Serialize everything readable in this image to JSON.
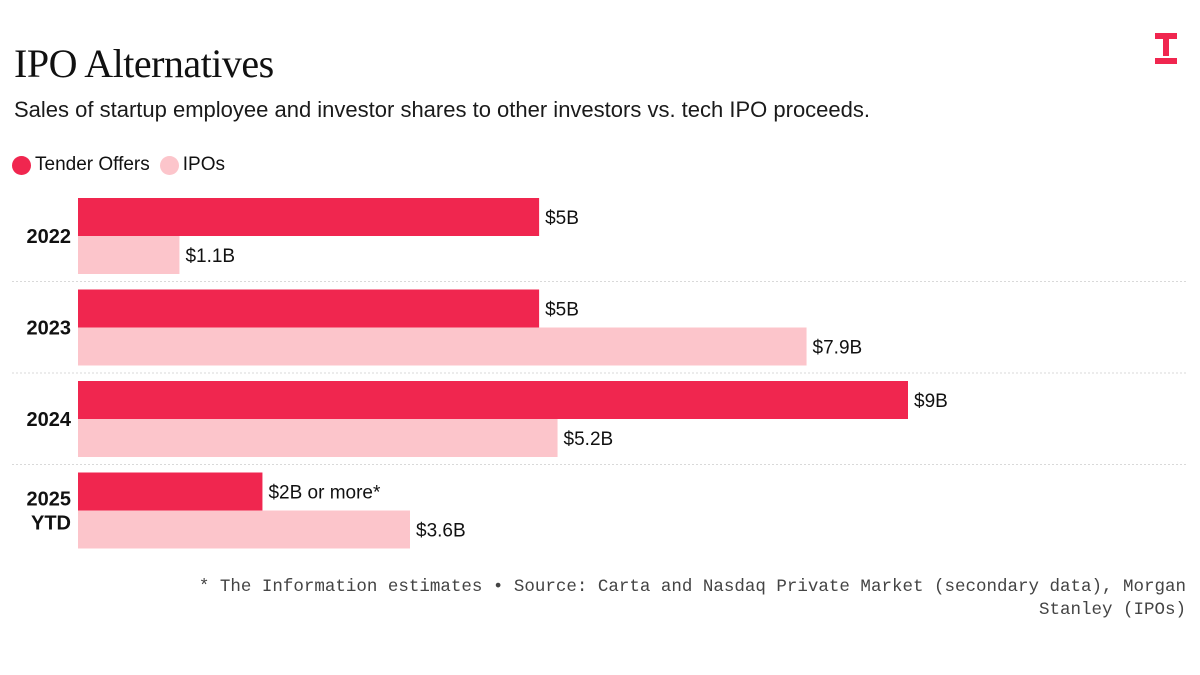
{
  "header": {
    "title": "IPO Alternatives",
    "subtitle": "Sales of startup employee and investor shares to other investors vs. tech IPO proceeds."
  },
  "legend": {
    "items": [
      {
        "label": "Tender Offers",
        "color": "#f0264f"
      },
      {
        "label": "IPOs",
        "color": "#fcc5cb"
      }
    ]
  },
  "colors": {
    "tender": "#f0264f",
    "ipo": "#fcc5cb",
    "grid": "#d9d9d9",
    "brand": "#f0264f"
  },
  "logo": {
    "icon": "the-information-logo-icon"
  },
  "chart_data": {
    "type": "bar",
    "orientation": "horizontal",
    "title": "IPO Alternatives",
    "subtitle": "Sales of startup employee and investor shares to other investors vs. tech IPO proceeds.",
    "categories": [
      [
        "2022"
      ],
      [
        "2023"
      ],
      [
        "2024"
      ],
      [
        "2025",
        "YTD"
      ]
    ],
    "series": [
      {
        "name": "Tender Offers",
        "values": [
          5,
          5,
          9,
          2
        ],
        "labels": [
          "$5B",
          "$5B",
          "$9B",
          "$2B or more*"
        ]
      },
      {
        "name": "IPOs",
        "values": [
          1.1,
          7.9,
          5.2,
          3.6
        ],
        "labels": [
          "$1.1B",
          "$7.9B",
          "$5.2B",
          "$3.6B"
        ]
      }
    ],
    "unit": "$B",
    "xlim": [
      0,
      9
    ],
    "xlabel": "",
    "ylabel": "",
    "grid": false,
    "legend_position": "top-left"
  },
  "footnote": {
    "line1": "* The Information estimates • Source: Carta and Nasdaq Private Market (secondary data), Morgan",
    "line2": "Stanley (IPOs)"
  }
}
